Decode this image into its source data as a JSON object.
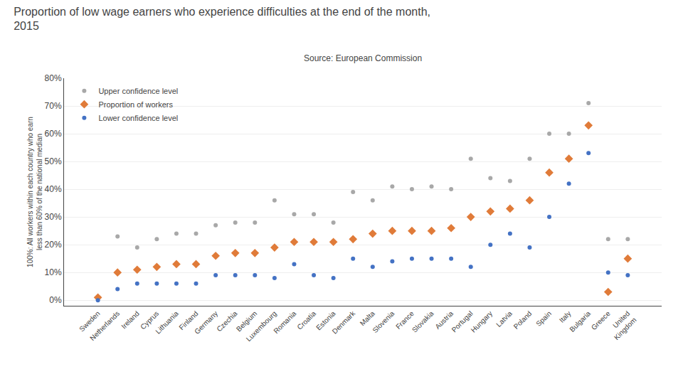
{
  "chart_data": {
    "type": "scatter",
    "title": "Proportion of low wage earners who experience difficulties at the end of the month,\n2015",
    "annotations": [
      "Source: European Commission"
    ],
    "ylabel": "100%: All workers within each country who earn\nless than 60% of the national median",
    "categories": [
      "Sweden",
      "Netherlands",
      "Ireland",
      "Cyprus",
      "Lithuania",
      "Finland",
      "Germany",
      "Czechia",
      "Belgium",
      "Luxembourg",
      "Romania",
      "Croatia",
      "Estonia",
      "Denmark",
      "Malta",
      "Slovenia",
      "France",
      "Slovakia",
      "Austria",
      "Portugal",
      "Hungary",
      "Latvia",
      "Poland",
      "Spain",
      "Italy",
      "Bulgaria",
      "Greece",
      "United\nKingdom"
    ],
    "series": [
      {
        "name": "Upper confidence level",
        "color": "#a8a8a8",
        "marker": "circle",
        "values": [
          1,
          23,
          19,
          22,
          24,
          24,
          27,
          28,
          28,
          36,
          31,
          31,
          28,
          39,
          36,
          41,
          40,
          41,
          40,
          51,
          44,
          43,
          51,
          60,
          60,
          71,
          22,
          22
        ]
      },
      {
        "name": "Proportion of workers",
        "color": "#e07b39",
        "marker": "diamond",
        "values": [
          1,
          10,
          11,
          12,
          13,
          13,
          16,
          17,
          17,
          19,
          21,
          21,
          21,
          22,
          24,
          25,
          25,
          25,
          26,
          30,
          32,
          33,
          36,
          46,
          51,
          63,
          3,
          15
        ]
      },
      {
        "name": "Lower confidence level",
        "color": "#4472c4",
        "marker": "circle",
        "values": [
          0,
          4,
          6,
          6,
          6,
          6,
          9,
          9,
          9,
          8,
          13,
          9,
          8,
          15,
          12,
          14,
          15,
          15,
          15,
          12,
          20,
          24,
          19,
          30,
          42,
          53,
          10,
          9
        ]
      }
    ],
    "ylim": [
      -2,
      80
    ],
    "yticks": [
      {
        "value": 0,
        "label": "0%"
      },
      {
        "value": 10,
        "label": "10%"
      },
      {
        "value": 20,
        "label": "20%"
      },
      {
        "value": 30,
        "label": "30%"
      },
      {
        "value": 40,
        "label": "40%"
      },
      {
        "value": 50,
        "label": "50%"
      },
      {
        "value": 60,
        "label": "60%"
      },
      {
        "value": 70,
        "label": "70%"
      },
      {
        "value": 80,
        "label": "80%"
      }
    ],
    "grid": true,
    "legend": "upper left"
  }
}
